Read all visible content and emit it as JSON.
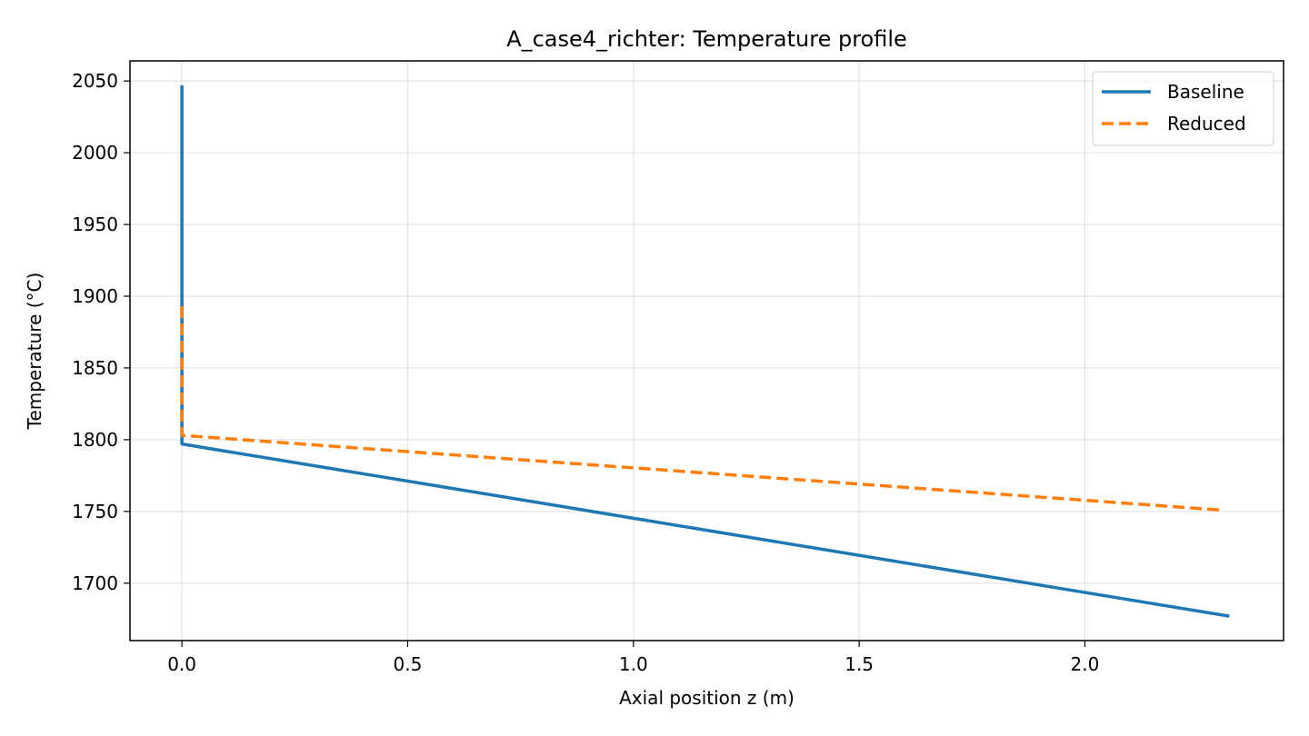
{
  "chart_data": {
    "type": "line",
    "title": "A_case4_richter: Temperature profile",
    "xlabel": "Axial position z (m)",
    "ylabel": "Temperature (°C)",
    "xlim": [
      -0.115,
      2.44
    ],
    "ylim": [
      1660,
      2064
    ],
    "xticks": [
      0.0,
      0.5,
      1.0,
      1.5,
      2.0
    ],
    "xtick_labels": [
      "0.0",
      "0.5",
      "1.0",
      "1.5",
      "2.0"
    ],
    "yticks": [
      1700,
      1750,
      1800,
      1850,
      1900,
      1950,
      2000,
      2050
    ],
    "ytick_labels": [
      "1700",
      "1750",
      "1800",
      "1850",
      "1900",
      "1950",
      "2000",
      "2050"
    ],
    "grid": true,
    "legend_position": "top-right",
    "series": [
      {
        "name": "Baseline",
        "color": "#1f77b4",
        "style": "solid",
        "x": [
          0.0,
          0.0,
          0.0,
          2.32
        ],
        "y": [
          2047,
          1850,
          1797,
          1677
        ]
      },
      {
        "name": "Reduced",
        "color": "#ff7f0e",
        "style": "dashed",
        "x": [
          0.0,
          0.0,
          0.0,
          2.3
        ],
        "y": [
          1893,
          1850,
          1803,
          1751
        ]
      }
    ]
  }
}
